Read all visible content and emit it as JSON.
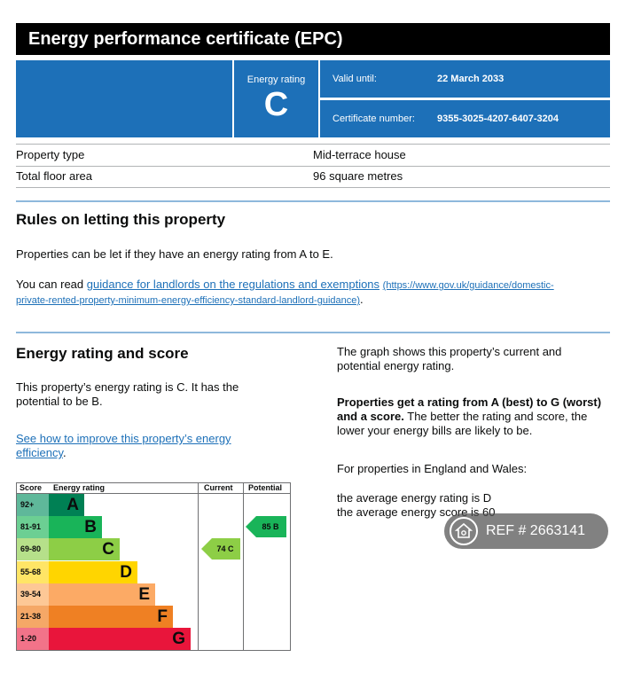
{
  "header": {
    "title": "Energy performance certificate (EPC)"
  },
  "certificate": {
    "rating_label": "Energy rating",
    "rating_letter": "C",
    "valid_until_label": "Valid until:",
    "valid_until": "22 March 2033",
    "certificate_number_label": "Certificate number:",
    "certificate_number": "9355-3025-4207-6407-3204"
  },
  "property": [
    {
      "label": "Property type",
      "value": "Mid-terrace house"
    },
    {
      "label": "Total floor area",
      "value": "96 square metres"
    }
  ],
  "letting": {
    "heading": "Rules on letting this property",
    "para1": "Properties can be let if they have an energy rating from A to E.",
    "para2_prefix": "You can read ",
    "link_text": "guidance for landlords on the regulations and exemptions",
    "link_url_line1": "(https://www.gov.uk/guidance/domestic-",
    "link_url_line2": "private-rented-property-minimum-energy-efficiency-standard-landlord-guidance)",
    "period": "."
  },
  "rating_section": {
    "heading": "Energy rating and score",
    "text_line1": "This property’s energy rating is C. It has the",
    "text_line2": "potential to be B.",
    "improve_link_line1": "See how to improve this property’s energy",
    "improve_link_line2": "efficiency",
    "period": ".",
    "graph_line1": "The graph shows this property’s current and",
    "graph_line2": "potential energy rating.",
    "bold_line1": "Properties get a rating from A (best) to G (worst)",
    "bold_line2": "and a score.",
    "rest_line2": " The better the rating and score, the",
    "rest_line3": "lower your energy bills are likely to be.",
    "england": "For properties in England and Wales:",
    "avg_rating": "the average energy rating is D",
    "avg_score": "the average energy score is 60"
  },
  "chart_data": {
    "type": "table",
    "headers": {
      "score": "Score",
      "rating": "Energy rating",
      "current": "Current",
      "potential": "Potential"
    },
    "bands": [
      {
        "range": "92+",
        "letter": "A",
        "color": "#008054"
      },
      {
        "range": "81-91",
        "letter": "B",
        "color": "#19b459"
      },
      {
        "range": "69-80",
        "letter": "C",
        "color": "#8dce46"
      },
      {
        "range": "55-68",
        "letter": "D",
        "color": "#ffd500"
      },
      {
        "range": "39-54",
        "letter": "E",
        "color": "#fcaa65"
      },
      {
        "range": "21-38",
        "letter": "F",
        "color": "#ef8023"
      },
      {
        "range": "1-20",
        "letter": "G",
        "color": "#e9153b"
      }
    ],
    "current": {
      "score": 74,
      "letter": "C",
      "label": "74  C",
      "color": "#8dce46"
    },
    "potential": {
      "score": 85,
      "letter": "B",
      "label": "85  B",
      "color": "#19b459"
    }
  },
  "watermark": {
    "text": "REF # 2663141"
  },
  "colors": {
    "blue": "#1d70b8",
    "divider": "#8eb8dc"
  }
}
